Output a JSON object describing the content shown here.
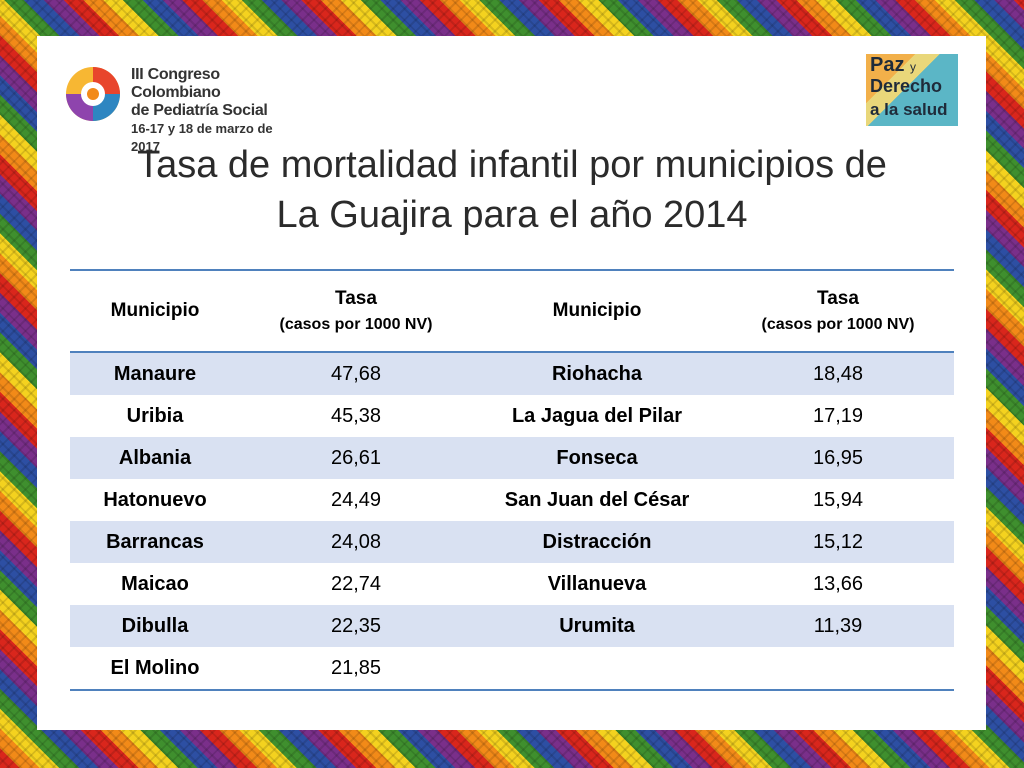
{
  "logo_left": {
    "line1": "III Congreso Colombiano",
    "line2": "de Pediatría Social",
    "line3": "16-17 y 18 de marzo de 2017"
  },
  "logo_right": {
    "line1": "Paz",
    "line1_small": "y",
    "line2": "Derecho",
    "line3": "a la salud"
  },
  "title": {
    "line1": "Tasa de mortalidad infantil por municipios de",
    "line2": "La Guajira para el año 2014"
  },
  "table": {
    "headers": [
      {
        "label": "Municipio",
        "sub": ""
      },
      {
        "label": "Tasa",
        "sub": "(casos por 1000 NV)"
      },
      {
        "label": "Municipio",
        "sub": ""
      },
      {
        "label": "Tasa",
        "sub": "(casos por 1000 NV)"
      }
    ],
    "rows": [
      [
        "Manaure",
        "47,68",
        "Riohacha",
        "18,48"
      ],
      [
        "Uribia",
        "45,38",
        "La Jagua del Pilar",
        "17,19"
      ],
      [
        "Albania",
        "26,61",
        "Fonseca",
        "16,95"
      ],
      [
        "Hatonuevo",
        "24,49",
        "San Juan del César",
        "15,94"
      ],
      [
        "Barrancas",
        "24,08",
        "Distracción",
        "15,12"
      ],
      [
        "Maicao",
        "22,74",
        "Villanueva",
        "13,66"
      ],
      [
        "Dibulla",
        "22,35",
        "Urumita",
        "11,39"
      ],
      [
        "El Molino",
        "21,85",
        "",
        ""
      ]
    ]
  }
}
